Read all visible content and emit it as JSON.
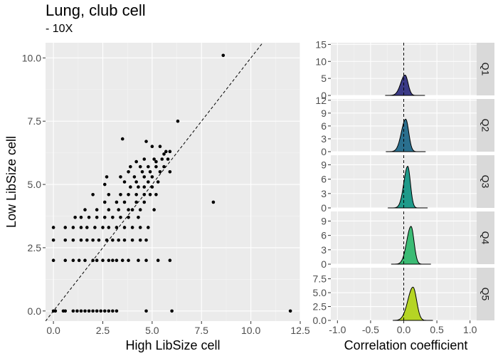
{
  "title": "Lung, club cell",
  "subtitle": "- 10X",
  "chart_data": [
    {
      "type": "scatter",
      "xlabel": "High LibSize cell",
      "ylabel": "Low LibSize cell",
      "xlim": [
        -0.4,
        12.5
      ],
      "ylim": [
        -0.4,
        10.6
      ],
      "xticks": [
        "0.0",
        "2.5",
        "5.0",
        "7.5",
        "10.0",
        "12.5"
      ],
      "yticks": [
        "0.0",
        "2.5",
        "5.0",
        "7.5",
        "10.0"
      ],
      "reference_line": "y = x (dashed)",
      "grid": true,
      "points": [
        [
          0,
          0
        ],
        [
          0.1,
          0
        ],
        [
          0.5,
          0
        ],
        [
          0.6,
          0
        ],
        [
          1.0,
          0
        ],
        [
          1.2,
          0
        ],
        [
          1.4,
          0
        ],
        [
          1.6,
          0
        ],
        [
          1.8,
          0
        ],
        [
          2.0,
          0
        ],
        [
          2.2,
          0
        ],
        [
          2.4,
          0
        ],
        [
          2.6,
          0
        ],
        [
          2.8,
          0
        ],
        [
          3.0,
          0
        ],
        [
          3.2,
          0
        ],
        [
          4.7,
          0
        ],
        [
          6.0,
          0
        ],
        [
          12.0,
          0
        ],
        [
          0,
          2.0
        ],
        [
          0.6,
          2.0
        ],
        [
          1.0,
          2.0
        ],
        [
          1.3,
          2.0
        ],
        [
          1.6,
          2.0
        ],
        [
          2.0,
          2.0
        ],
        [
          2.2,
          2.0
        ],
        [
          2.5,
          2.0
        ],
        [
          2.8,
          2.0
        ],
        [
          3.0,
          2.0
        ],
        [
          3.2,
          2.0
        ],
        [
          3.5,
          2.0
        ],
        [
          3.8,
          2.0
        ],
        [
          4.3,
          2.0
        ],
        [
          4.7,
          2.0
        ],
        [
          5.3,
          2.0
        ],
        [
          5.9,
          2.0
        ],
        [
          0,
          2.8
        ],
        [
          0.6,
          2.8
        ],
        [
          1.0,
          2.8
        ],
        [
          1.4,
          2.8
        ],
        [
          1.7,
          2.8
        ],
        [
          2.0,
          2.8
        ],
        [
          2.3,
          2.8
        ],
        [
          2.7,
          2.8
        ],
        [
          3.0,
          2.8
        ],
        [
          3.3,
          2.8
        ],
        [
          3.6,
          2.8
        ],
        [
          4.0,
          2.8
        ],
        [
          4.4,
          2.8
        ],
        [
          4.7,
          2.8
        ],
        [
          0,
          3.3
        ],
        [
          0.6,
          3.3
        ],
        [
          1.0,
          3.3
        ],
        [
          1.4,
          3.3
        ],
        [
          1.7,
          3.3
        ],
        [
          2.1,
          3.3
        ],
        [
          2.5,
          3.3
        ],
        [
          2.8,
          3.3
        ],
        [
          3.2,
          3.3
        ],
        [
          3.6,
          3.3
        ],
        [
          4.0,
          3.3
        ],
        [
          4.4,
          3.3
        ],
        [
          4.8,
          3.3
        ],
        [
          1.1,
          3.7
        ],
        [
          1.4,
          3.7
        ],
        [
          1.8,
          3.7
        ],
        [
          2.2,
          3.7
        ],
        [
          2.6,
          3.7
        ],
        [
          3.0,
          3.7
        ],
        [
          3.4,
          3.7
        ],
        [
          3.8,
          3.7
        ],
        [
          4.3,
          3.7
        ],
        [
          1.6,
          4.0
        ],
        [
          2.2,
          4.0
        ],
        [
          2.8,
          4.0
        ],
        [
          3.3,
          4.0
        ],
        [
          3.8,
          4.0
        ],
        [
          4.0,
          4.0
        ],
        [
          4.4,
          4.0
        ],
        [
          5.1,
          4.0
        ],
        [
          2.6,
          4.3
        ],
        [
          3.2,
          4.3
        ],
        [
          3.6,
          4.3
        ],
        [
          4.2,
          4.3
        ],
        [
          4.6,
          4.3
        ],
        [
          8.1,
          4.3
        ],
        [
          2.0,
          4.6
        ],
        [
          2.8,
          4.6
        ],
        [
          3.4,
          4.6
        ],
        [
          3.8,
          4.6
        ],
        [
          4.2,
          4.6
        ],
        [
          4.6,
          4.6
        ],
        [
          4.9,
          4.6
        ],
        [
          5.2,
          4.6
        ],
        [
          3.9,
          4.9
        ],
        [
          4.3,
          4.9
        ],
        [
          4.6,
          4.9
        ],
        [
          5.0,
          4.9
        ],
        [
          2.6,
          5.0
        ],
        [
          3.6,
          5.1
        ],
        [
          4.2,
          5.1
        ],
        [
          4.8,
          5.1
        ],
        [
          5.3,
          5.1
        ],
        [
          2.7,
          5.3
        ],
        [
          3.4,
          5.3
        ],
        [
          4.1,
          5.3
        ],
        [
          4.6,
          5.3
        ],
        [
          5.0,
          5.3
        ],
        [
          3.8,
          5.5
        ],
        [
          4.5,
          5.5
        ],
        [
          4.9,
          5.5
        ],
        [
          5.4,
          5.5
        ],
        [
          5.9,
          5.5
        ],
        [
          3.9,
          5.7
        ],
        [
          4.4,
          5.7
        ],
        [
          4.8,
          5.7
        ],
        [
          5.2,
          5.7
        ],
        [
          5.6,
          5.7
        ],
        [
          4.2,
          5.9
        ],
        [
          5.2,
          5.9
        ],
        [
          4.6,
          6.0
        ],
        [
          5.1,
          6.0
        ],
        [
          5.5,
          6.0
        ],
        [
          5.8,
          6.0
        ],
        [
          5.6,
          6.2
        ],
        [
          5.7,
          6.3
        ],
        [
          5.9,
          6.3
        ],
        [
          5.0,
          6.5
        ],
        [
          5.4,
          6.5
        ],
        [
          3.5,
          6.8
        ],
        [
          4.7,
          6.7
        ],
        [
          6.3,
          7.5
        ],
        [
          8.6,
          10.1
        ]
      ]
    },
    {
      "type": "area",
      "description": "ridgeline density panels",
      "xlabel": "Correlation coefficient",
      "xlim": [
        -1.1,
        1.1
      ],
      "xticks": [
        "-1.0",
        "-0.5",
        "0.0",
        "0.5",
        "1.0"
      ],
      "reference_line": "x = 0 (dashed)",
      "panels": [
        {
          "label": "Q1",
          "color": "#3b3a86",
          "ymax": 15.5,
          "yticks": [
            "0",
            "5",
            "10",
            "15"
          ],
          "peak_x": 0.02,
          "peak_y": 6.0,
          "sd": 0.05
        },
        {
          "label": "Q2",
          "color": "#2a6f8e",
          "ymax": 12.3,
          "yticks": [
            "0",
            "3",
            "6",
            "9",
            "12"
          ],
          "peak_x": 0.03,
          "peak_y": 7.6,
          "sd": 0.05
        },
        {
          "label": "Q3",
          "color": "#1f9a8a",
          "ymax": 11.0,
          "yticks": [
            "0",
            "3",
            "6",
            "9"
          ],
          "peak_x": 0.06,
          "peak_y": 8.7,
          "sd": 0.045
        },
        {
          "label": "Q4",
          "color": "#3bbb74",
          "ymax": 11.0,
          "yticks": [
            "0",
            "3",
            "6",
            "9"
          ],
          "peak_x": 0.11,
          "peak_y": 7.9,
          "sd": 0.05
        },
        {
          "label": "Q5",
          "color": "#b5d524",
          "ymax": 9.5,
          "yticks": [
            "0.0",
            "2.5",
            "5.0",
            "7.5"
          ],
          "peak_x": 0.14,
          "peak_y": 6.0,
          "sd": 0.06
        }
      ]
    }
  ]
}
